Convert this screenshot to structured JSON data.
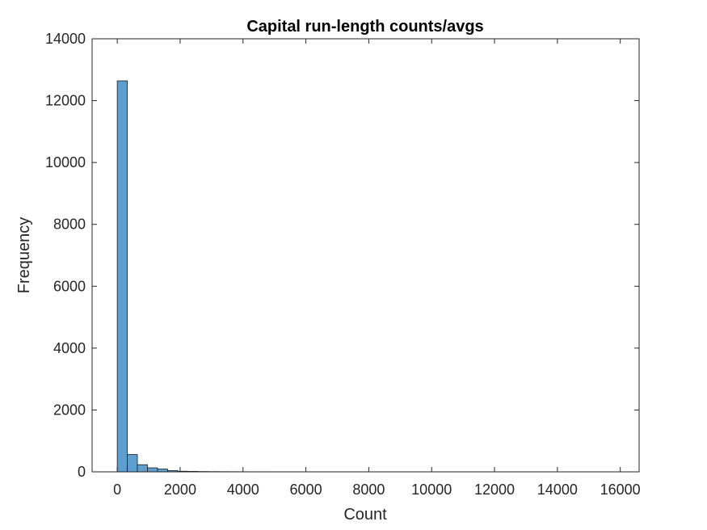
{
  "chart_data": {
    "type": "bar",
    "title": "Capital run-length counts/avgs",
    "xlabel": "Count",
    "ylabel": "Frequency",
    "xlim": [
      -800,
      16600
    ],
    "ylim": [
      0,
      14000
    ],
    "xticks": [
      "0",
      "2000",
      "4000",
      "6000",
      "8000",
      "10000",
      "12000",
      "14000",
      "16000"
    ],
    "yticks": [
      "0",
      "2000",
      "4000",
      "6000",
      "8000",
      "10000",
      "12000",
      "14000"
    ],
    "bin_width": 320,
    "bin_start": 0,
    "values": [
      12640,
      560,
      230,
      130,
      90,
      40,
      20,
      15,
      10,
      8,
      6,
      5,
      4,
      3,
      3,
      2,
      2,
      2,
      2,
      1,
      1,
      1,
      1,
      1,
      1,
      1,
      1,
      1,
      1,
      1,
      1,
      1,
      1,
      1,
      1,
      1,
      1,
      1,
      1,
      1,
      1,
      1,
      1,
      1,
      1,
      1,
      1,
      1,
      1,
      1
    ],
    "bar_color": "#5e9fd1",
    "edge_color": "#1a1a1a",
    "grid": false,
    "legend": "none"
  }
}
